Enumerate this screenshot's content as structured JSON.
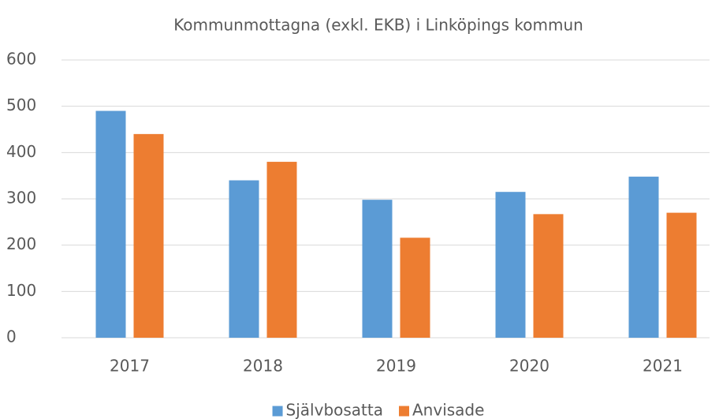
{
  "chart_data": {
    "type": "bar",
    "title": "Kommunmottagna (exkl. EKB) i Linköpings kommun",
    "categories": [
      "2017",
      "2018",
      "2019",
      "2020",
      "2021"
    ],
    "series": [
      {
        "name": "Självbosatta",
        "color": "#5b9bd5",
        "values": [
          490,
          340,
          298,
          315,
          348
        ]
      },
      {
        "name": "Anvisade",
        "color": "#ed7d31",
        "values": [
          440,
          380,
          216,
          267,
          270
        ]
      }
    ],
    "ylim": [
      0,
      600
    ],
    "yticks": [
      0,
      100,
      200,
      300,
      400,
      500,
      600
    ],
    "grid": true,
    "legend": "bottom"
  }
}
